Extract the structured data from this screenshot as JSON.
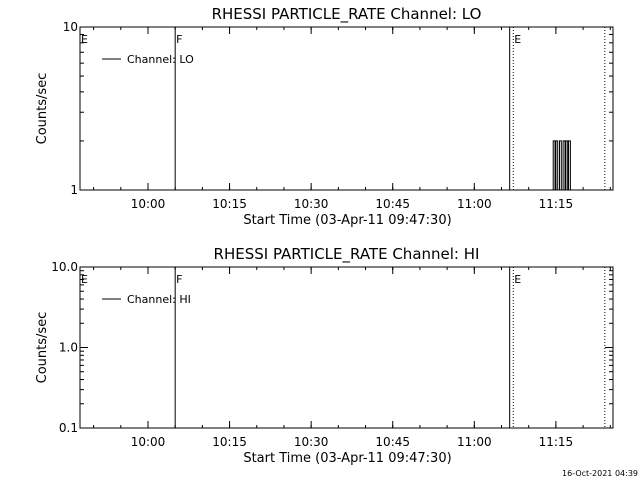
{
  "footer": {
    "timestamp": "16-Oct-2021 04:39"
  },
  "chart_data": [
    {
      "type": "line",
      "title": "RHESSI PARTICLE_RATE Channel: LO",
      "xlabel": "Start Time (03-Apr-11 09:47:30)",
      "ylabel": "Counts/sec",
      "yscale": "log",
      "ylim": [
        1,
        10
      ],
      "ytick_values": [
        1,
        10
      ],
      "ytick_labels": [
        "1",
        "10"
      ],
      "xlim": [
        "09:47:30",
        "11:25:30"
      ],
      "xticks": [
        "10:00",
        "10:15",
        "10:30",
        "10:45",
        "11:00",
        "11:15"
      ],
      "legend": {
        "position": "top-left",
        "entries": [
          "Channel: LO"
        ]
      },
      "markers": [
        {
          "label": "E",
          "time": "09:47:30",
          "style": "solid"
        },
        {
          "label": "F",
          "time": "10:05:00",
          "style": "solid"
        },
        {
          "label": "",
          "time": "11:06:30",
          "style": "solid"
        },
        {
          "label": "E",
          "time": "11:07:10",
          "style": "dotted"
        },
        {
          "label": "",
          "time": "11:24:00",
          "style": "dotted"
        }
      ],
      "series": [
        {
          "name": "Channel: LO",
          "x": [
            "11:14:20",
            "11:14:30",
            "11:14:40",
            "11:14:50",
            "11:15:00",
            "11:15:10",
            "11:15:20",
            "11:15:30",
            "11:15:40",
            "11:15:50",
            "11:16:00",
            "11:16:10",
            "11:16:20",
            "11:16:30",
            "11:16:40",
            "11:16:50",
            "11:17:00",
            "11:17:10",
            "11:17:20",
            "11:17:30",
            "11:17:40",
            "11:17:50",
            "11:18:00"
          ],
          "y": [
            1,
            2,
            2,
            1,
            2,
            2,
            1,
            1,
            2,
            2,
            1,
            1,
            2,
            2,
            1,
            2,
            2,
            1,
            2,
            2,
            1,
            1,
            1
          ]
        }
      ]
    },
    {
      "type": "line",
      "title": "RHESSI PARTICLE_RATE Channel: HI",
      "xlabel": "Start Time (03-Apr-11 09:47:30)",
      "ylabel": "Counts/sec",
      "yscale": "log",
      "ylim": [
        0.1,
        10
      ],
      "ytick_values": [
        0.1,
        1,
        10
      ],
      "ytick_labels": [
        "0.1",
        "1.0",
        "10.0"
      ],
      "xlim": [
        "09:47:30",
        "11:25:30"
      ],
      "xticks": [
        "10:00",
        "10:15",
        "10:30",
        "10:45",
        "11:00",
        "11:15"
      ],
      "legend": {
        "position": "top-left",
        "entries": [
          "Channel: HI"
        ]
      },
      "markers": [
        {
          "label": "E",
          "time": "09:47:30",
          "style": "solid"
        },
        {
          "label": "F",
          "time": "10:05:00",
          "style": "solid"
        },
        {
          "label": "",
          "time": "11:06:30",
          "style": "solid"
        },
        {
          "label": "E",
          "time": "11:07:10",
          "style": "dotted"
        },
        {
          "label": "",
          "time": "11:24:00",
          "style": "dotted"
        }
      ],
      "series": [
        {
          "name": "Channel: HI",
          "x": [],
          "y": []
        }
      ]
    }
  ]
}
